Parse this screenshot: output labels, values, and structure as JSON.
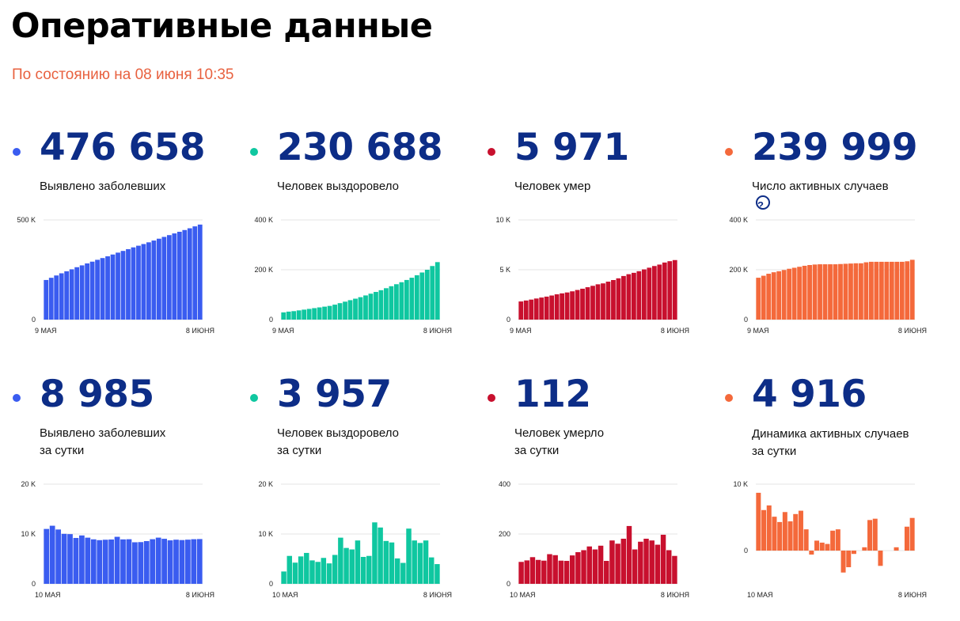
{
  "page": {
    "title": "Оперативные данные",
    "subtitle": "По состоянию на 08 июня 10:35"
  },
  "cards": [
    {
      "id": "c1",
      "color": "#3a5cf0",
      "value": "476 658",
      "label": [
        "Выявлено заболевших"
      ]
    },
    {
      "id": "c2",
      "color": "#0fc7a0",
      "value": "230 688",
      "label": [
        "Человек выздоровело"
      ]
    },
    {
      "id": "c3",
      "color": "#c8102e",
      "value": "5 971",
      "label": [
        "Человек умер"
      ]
    },
    {
      "id": "c4",
      "color": "#f4693b",
      "value": "239 999",
      "label": [
        "Число активных случаев"
      ],
      "help_icon": "question-circle-icon",
      "help_text": "?"
    },
    {
      "id": "c5",
      "color": "#3a5cf0",
      "value": "8 985",
      "label": [
        "Выявлено заболевших",
        "за сутки"
      ]
    },
    {
      "id": "c6",
      "color": "#0fc7a0",
      "value": "3 957",
      "label": [
        "Человек выздоровело",
        "за сутки"
      ]
    },
    {
      "id": "c7",
      "color": "#c8102e",
      "value": "112",
      "label": [
        "Человек умерло",
        "за сутки"
      ]
    },
    {
      "id": "c8",
      "color": "#f4693b",
      "value": "4 916",
      "label": [
        "Динамика активных случаев",
        "за сутки"
      ]
    }
  ],
  "chart_data": [
    {
      "type": "bar",
      "series_color": "#3a5cf0",
      "x_start": "9 МАЯ",
      "x_end": "8 ИЮНЯ",
      "ylim": [
        0,
        500000
      ],
      "yticks": [
        {
          "v": 0,
          "label": "0"
        },
        {
          "v": 500000,
          "label": "500 K"
        }
      ],
      "values": [
        198676,
        209688,
        221344,
        232243,
        242271,
        252245,
        262843,
        272043,
        281752,
        290678,
        299941,
        308705,
        317554,
        326448,
        335882,
        344481,
        353427,
        362342,
        370680,
        379051,
        387623,
        396575,
        405843,
        414878,
        423741,
        432277,
        440538,
        449256,
        458102,
        467673,
        476658
      ]
    },
    {
      "type": "bar",
      "series_color": "#0fc7a0",
      "x_start": "9 МАЯ",
      "x_end": "8 ИЮНЯ",
      "ylim": [
        0,
        400000
      ],
      "yticks": [
        {
          "v": 0,
          "label": "0"
        },
        {
          "v": 200000,
          "label": "200 K"
        },
        {
          "v": 400000,
          "label": "400 K"
        }
      ],
      "values": [
        29000,
        32000,
        34000,
        37000,
        40000,
        43000,
        46000,
        49000,
        52000,
        55000,
        60000,
        66000,
        72000,
        78000,
        84000,
        90000,
        97000,
        104000,
        111000,
        118000,
        126000,
        134000,
        142000,
        150000,
        159000,
        168000,
        178000,
        189000,
        200000,
        215000,
        230688
      ]
    },
    {
      "type": "bar",
      "series_color": "#c8102e",
      "x_start": "9 МАЯ",
      "x_end": "8 ИЮНЯ",
      "ylim": [
        0,
        10000
      ],
      "yticks": [
        {
          "v": 0,
          "label": "0"
        },
        {
          "v": 5000,
          "label": "5 K"
        },
        {
          "v": 10000,
          "label": "10 K"
        }
      ],
      "values": [
        1820,
        1915,
        2009,
        2116,
        2212,
        2305,
        2418,
        2537,
        2631,
        2722,
        2837,
        2972,
        3099,
        3249,
        3388,
        3541,
        3633,
        3807,
        3968,
        4142,
        4374,
        4555,
        4693,
        4855,
        5037,
        5207,
        5376,
        5520,
        5725,
        5859,
        5971
      ]
    },
    {
      "type": "bar",
      "series_color": "#f4693b",
      "x_start": "9 МАЯ",
      "x_end": "8 ИЮНЯ",
      "ylim": [
        0,
        400000
      ],
      "yticks": [
        {
          "v": 0,
          "label": "0"
        },
        {
          "v": 200000,
          "label": "200 K"
        },
        {
          "v": 400000,
          "label": "400 K"
        }
      ],
      "values": [
        168000,
        176000,
        184000,
        190000,
        194000,
        199000,
        204000,
        208000,
        212000,
        216000,
        219000,
        221000,
        222000,
        222000,
        222000,
        222000,
        223000,
        224000,
        225000,
        226000,
        226000,
        230000,
        232000,
        232000,
        232000,
        232000,
        232000,
        232000,
        232000,
        234000,
        239999
      ]
    },
    {
      "type": "bar",
      "series_color": "#3a5cf0",
      "x_start": "10 МАЯ",
      "x_end": "8 ИЮНЯ",
      "ylim": [
        0,
        20000
      ],
      "yticks": [
        {
          "v": 0,
          "label": "0"
        },
        {
          "v": 10000,
          "label": "10 K"
        },
        {
          "v": 20000,
          "label": "20 K"
        }
      ],
      "values": [
        11012,
        11656,
        10899,
        10028,
        9974,
        9200,
        9709,
        9263,
        8926,
        8764,
        8849,
        8894,
        9434,
        8915,
        8946,
        8338,
        8371,
        8572,
        8952,
        9268,
        9035,
        8726,
        8855,
        8779,
        8863,
        8952,
        8985
      ]
    },
    {
      "type": "bar",
      "series_color": "#0fc7a0",
      "x_start": "10 МАЯ",
      "x_end": "8 ИЮНЯ",
      "ylim": [
        0,
        20000
      ],
      "yticks": [
        {
          "v": 0,
          "label": "0"
        },
        {
          "v": 10000,
          "label": "10 K"
        },
        {
          "v": 20000,
          "label": "20 K"
        }
      ],
      "values": [
        2476,
        5600,
        4250,
        5500,
        6200,
        4700,
        4400,
        5200,
        4100,
        5800,
        9262,
        7200,
        6900,
        8700,
        5400,
        5600,
        12331,
        11300,
        8600,
        8300,
        5100,
        4200,
        11079,
        8700,
        8200,
        8700,
        5300,
        3957
      ]
    },
    {
      "type": "bar",
      "series_color": "#c8102e",
      "x_start": "10 МАЯ",
      "x_end": "8 ИЮНЯ",
      "ylim": [
        0,
        400
      ],
      "yticks": [
        {
          "v": 0,
          "label": "0"
        },
        {
          "v": 200,
          "label": "200"
        },
        {
          "v": 400,
          "label": "400"
        }
      ],
      "values": [
        88,
        94,
        107,
        96,
        93,
        119,
        115,
        93,
        92,
        114,
        127,
        135,
        150,
        138,
        153,
        92,
        174,
        161,
        181,
        232,
        138,
        169,
        181,
        174,
        157,
        197,
        135,
        112
      ]
    },
    {
      "type": "bar",
      "series_color": "#f4693b",
      "x_start": "10 МАЯ",
      "x_end": "8 ИЮНЯ",
      "ylim": [
        -5000,
        10000
      ],
      "yticks": [
        {
          "v": 0,
          "label": "0"
        },
        {
          "v": 10000,
          "label": "10 K"
        }
      ],
      "values": [
        8700,
        6100,
        6800,
        5100,
        4300,
        5800,
        4400,
        5500,
        6000,
        3200,
        -600,
        1500,
        1200,
        1000,
        3000,
        3200,
        -3300,
        -2500,
        -500,
        0,
        500,
        4600,
        4800,
        -2300,
        0,
        0,
        500,
        0,
        3600,
        4916
      ]
    }
  ]
}
